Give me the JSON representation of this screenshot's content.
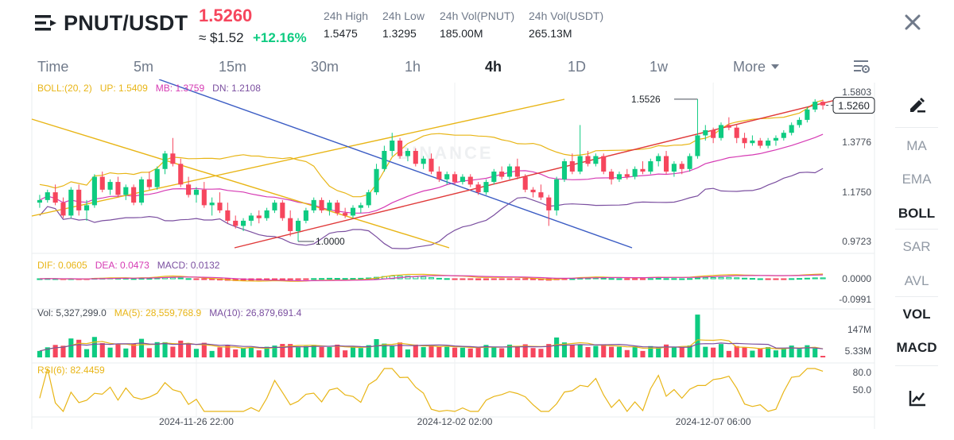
{
  "header": {
    "pair": "PNUT/USDT",
    "price": "1.5260",
    "usd_price": "≈ $1.52",
    "change": "+12.16%",
    "stats": [
      {
        "label": "24h High",
        "value": "1.5475"
      },
      {
        "label": "24h Low",
        "value": "1.3295"
      },
      {
        "label": "24h Vol(PNUT)",
        "value": "185.00M"
      },
      {
        "label": "24h Vol(USDT)",
        "value": "265.13M"
      }
    ]
  },
  "tabs": [
    {
      "label": "Time"
    },
    {
      "label": "5m"
    },
    {
      "label": "15m"
    },
    {
      "label": "30m"
    },
    {
      "label": "1h"
    },
    {
      "label": "4h"
    },
    {
      "label": "1D"
    },
    {
      "label": "1w"
    },
    {
      "label": "More"
    }
  ],
  "active_tab": "4h",
  "sidebar": [
    {
      "label": "MA",
      "active": false
    },
    {
      "label": "EMA",
      "active": false
    },
    {
      "label": "BOLL",
      "active": true
    },
    {
      "label": "SAR",
      "active": false
    },
    {
      "label": "AVL",
      "active": false
    },
    {
      "label": "VOL",
      "active": true
    },
    {
      "label": "MACD",
      "active": true
    }
  ],
  "indicators": {
    "boll": {
      "name": "BOLL:(20, 2)",
      "up": "UP: 1.5409",
      "mb": "MB: 1.3759",
      "dn": "DN: 1.2108"
    },
    "macd": {
      "dif": "DIF: 0.0605",
      "dea": "DEA: 0.0473",
      "macd": "MACD: 0.0132"
    },
    "vol": {
      "vol": "Vol: 5,327,299.0",
      "ma5": "MA(5): 28,559,768.9",
      "ma10": "MA(10): 26,879,691.4"
    },
    "rsi": {
      "label": "RSI(6): 82.4459"
    }
  },
  "axes": {
    "price_ticks": [
      "1.5803",
      "1.3776",
      "1.1750",
      "0.9723"
    ],
    "macd_ticks": [
      "0.0000",
      "-0.0991"
    ],
    "vol_ticks": [
      "147M",
      "5.33M"
    ],
    "rsi_ticks": [
      "80.0",
      "50.0"
    ],
    "time_ticks": [
      "2024-11-26 22:00",
      "2024-12-02 02:00",
      "2024-12-07 06:00"
    ]
  },
  "annotations": {
    "high_marker": "1.5526",
    "low_marker": "1.0000",
    "current_price_tag": "1.5260",
    "watermark": "BINANCE"
  },
  "colors": {
    "up": "#0ecb81",
    "down": "#f6465d",
    "boll_up": "#e8b516",
    "boll_mb": "#d63bb4",
    "boll_dn": "#7b4fa0",
    "trend_red": "#e03a3a",
    "trend_blue": "#3b5cc4",
    "trend_yellow": "#e8b516",
    "grid": "#eef0f2"
  },
  "chart_data": {
    "type": "candlestick",
    "price_range": [
      0.9723,
      1.5803
    ],
    "candles": [
      [
        1.15,
        1.18,
        1.13,
        1.16
      ],
      [
        1.16,
        1.2,
        1.15,
        1.19
      ],
      [
        1.19,
        1.22,
        1.14,
        1.15
      ],
      [
        1.15,
        1.17,
        1.09,
        1.1
      ],
      [
        1.1,
        1.21,
        1.09,
        1.2
      ],
      [
        1.2,
        1.22,
        1.1,
        1.12
      ],
      [
        1.12,
        1.16,
        1.08,
        1.14
      ],
      [
        1.14,
        1.26,
        1.13,
        1.25
      ],
      [
        1.25,
        1.27,
        1.19,
        1.2
      ],
      [
        1.2,
        1.24,
        1.18,
        1.23
      ],
      [
        1.23,
        1.25,
        1.17,
        1.18
      ],
      [
        1.18,
        1.22,
        1.16,
        1.21
      ],
      [
        1.21,
        1.22,
        1.14,
        1.15
      ],
      [
        1.15,
        1.25,
        1.14,
        1.24
      ],
      [
        1.24,
        1.27,
        1.2,
        1.21
      ],
      [
        1.21,
        1.29,
        1.2,
        1.28
      ],
      [
        1.28,
        1.35,
        1.26,
        1.34
      ],
      [
        1.34,
        1.4,
        1.29,
        1.3
      ],
      [
        1.3,
        1.32,
        1.21,
        1.22
      ],
      [
        1.22,
        1.25,
        1.17,
        1.18
      ],
      [
        1.18,
        1.21,
        1.15,
        1.2
      ],
      [
        1.2,
        1.23,
        1.13,
        1.14
      ],
      [
        1.14,
        1.17,
        1.1,
        1.15
      ],
      [
        1.15,
        1.19,
        1.11,
        1.12
      ],
      [
        1.12,
        1.15,
        1.07,
        1.08
      ],
      [
        1.08,
        1.1,
        1.05,
        1.06
      ],
      [
        1.06,
        1.09,
        1.04,
        1.08
      ],
      [
        1.08,
        1.11,
        1.06,
        1.1
      ],
      [
        1.1,
        1.12,
        1.07,
        1.09
      ],
      [
        1.09,
        1.13,
        1.08,
        1.12
      ],
      [
        1.12,
        1.16,
        1.11,
        1.15
      ],
      [
        1.15,
        1.16,
        1.08,
        1.09
      ],
      [
        1.09,
        1.12,
        1.02,
        1.04
      ],
      [
        1.04,
        1.09,
        1.0,
        1.08
      ],
      [
        1.08,
        1.13,
        1.07,
        1.12
      ],
      [
        1.12,
        1.17,
        1.11,
        1.16
      ],
      [
        1.16,
        1.17,
        1.11,
        1.12
      ],
      [
        1.12,
        1.16,
        1.1,
        1.15
      ],
      [
        1.15,
        1.16,
        1.1,
        1.11
      ],
      [
        1.11,
        1.13,
        1.09,
        1.1
      ],
      [
        1.1,
        1.14,
        1.09,
        1.13
      ],
      [
        1.13,
        1.15,
        1.11,
        1.14
      ],
      [
        1.14,
        1.2,
        1.13,
        1.19
      ],
      [
        1.19,
        1.3,
        1.18,
        1.28
      ],
      [
        1.28,
        1.37,
        1.27,
        1.35
      ],
      [
        1.35,
        1.42,
        1.33,
        1.39
      ],
      [
        1.39,
        1.4,
        1.32,
        1.33
      ],
      [
        1.33,
        1.36,
        1.31,
        1.35
      ],
      [
        1.35,
        1.36,
        1.29,
        1.3
      ],
      [
        1.3,
        1.33,
        1.28,
        1.32
      ],
      [
        1.32,
        1.34,
        1.26,
        1.27
      ],
      [
        1.27,
        1.29,
        1.23,
        1.24
      ],
      [
        1.24,
        1.27,
        1.22,
        1.26
      ],
      [
        1.26,
        1.27,
        1.22,
        1.23
      ],
      [
        1.23,
        1.26,
        1.22,
        1.25
      ],
      [
        1.25,
        1.26,
        1.21,
        1.22
      ],
      [
        1.22,
        1.23,
        1.18,
        1.19
      ],
      [
        1.19,
        1.24,
        1.18,
        1.23
      ],
      [
        1.23,
        1.28,
        1.22,
        1.27
      ],
      [
        1.27,
        1.29,
        1.24,
        1.25
      ],
      [
        1.25,
        1.3,
        1.24,
        1.29
      ],
      [
        1.29,
        1.32,
        1.24,
        1.25
      ],
      [
        1.25,
        1.26,
        1.19,
        1.2
      ],
      [
        1.2,
        1.21,
        1.17,
        1.19
      ],
      [
        1.19,
        1.22,
        1.16,
        1.17
      ],
      [
        1.17,
        1.18,
        1.06,
        1.12
      ],
      [
        1.12,
        1.25,
        1.1,
        1.24
      ],
      [
        1.24,
        1.32,
        1.23,
        1.31
      ],
      [
        1.31,
        1.34,
        1.26,
        1.27
      ],
      [
        1.27,
        1.45,
        1.26,
        1.33
      ],
      [
        1.33,
        1.35,
        1.29,
        1.3
      ],
      [
        1.3,
        1.34,
        1.29,
        1.33
      ],
      [
        1.33,
        1.34,
        1.26,
        1.27
      ],
      [
        1.27,
        1.28,
        1.22,
        1.24
      ],
      [
        1.24,
        1.27,
        1.23,
        1.26
      ],
      [
        1.26,
        1.28,
        1.24,
        1.25
      ],
      [
        1.25,
        1.29,
        1.24,
        1.28
      ],
      [
        1.28,
        1.31,
        1.26,
        1.27
      ],
      [
        1.27,
        1.32,
        1.26,
        1.31
      ],
      [
        1.31,
        1.34,
        1.29,
        1.33
      ],
      [
        1.33,
        1.35,
        1.26,
        1.27
      ],
      [
        1.27,
        1.31,
        1.25,
        1.3
      ],
      [
        1.3,
        1.31,
        1.26,
        1.28
      ],
      [
        1.28,
        1.34,
        1.27,
        1.33
      ],
      [
        1.33,
        1.55,
        1.32,
        1.41
      ],
      [
        1.41,
        1.45,
        1.39,
        1.43
      ],
      [
        1.43,
        1.44,
        1.38,
        1.4
      ],
      [
        1.4,
        1.46,
        1.39,
        1.45
      ],
      [
        1.45,
        1.48,
        1.43,
        1.44
      ],
      [
        1.44,
        1.45,
        1.38,
        1.4
      ],
      [
        1.4,
        1.42,
        1.36,
        1.38
      ],
      [
        1.38,
        1.41,
        1.37,
        1.39
      ],
      [
        1.39,
        1.4,
        1.36,
        1.37
      ],
      [
        1.37,
        1.4,
        1.36,
        1.39
      ],
      [
        1.39,
        1.41,
        1.37,
        1.4
      ],
      [
        1.4,
        1.43,
        1.39,
        1.42
      ],
      [
        1.42,
        1.46,
        1.41,
        1.45
      ],
      [
        1.45,
        1.48,
        1.44,
        1.47
      ],
      [
        1.47,
        1.52,
        1.46,
        1.51
      ],
      [
        1.51,
        1.55,
        1.5,
        1.54
      ],
      [
        1.54,
        1.5475,
        1.51,
        1.526
      ]
    ],
    "rsi_range": [
      30,
      95
    ]
  }
}
